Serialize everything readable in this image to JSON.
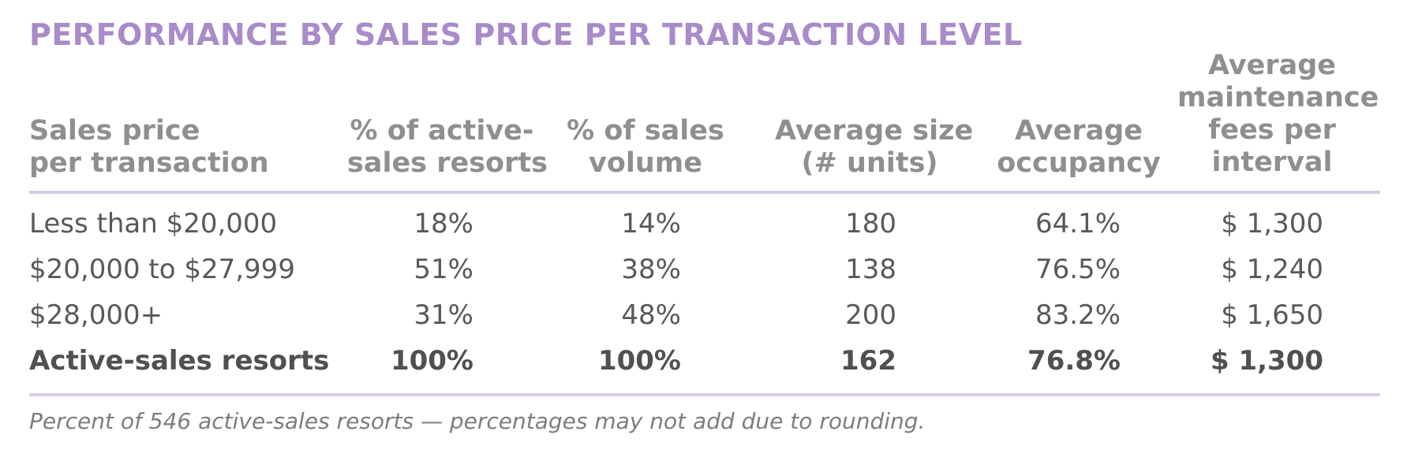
{
  "title": "PERFORMANCE BY SALES PRICE PER TRANSACTION LEVEL",
  "headers": {
    "col0": [
      "Sales price",
      "per transaction"
    ],
    "col1": [
      "% of active-",
      "sales resorts"
    ],
    "col2": [
      "% of sales",
      "volume"
    ],
    "col3": [
      "Average size",
      "(# units)"
    ],
    "col4": [
      "Average",
      "occupancy"
    ],
    "col5": [
      "Average",
      "maintenance",
      "fees per",
      "interval"
    ]
  },
  "rows": [
    {
      "label": "Less than $20,000",
      "pct_active": "18%",
      "pct_sales": "14%",
      "avg_size": "180",
      "avg_occupancy": "64.1%",
      "avg_fees": "$ 1,300"
    },
    {
      "label": "$20,000 to $27,999",
      "pct_active": "51%",
      "pct_sales": "38%",
      "avg_size": "138",
      "avg_occupancy": "76.5%",
      "avg_fees": "$ 1,240"
    },
    {
      "label": "$28,000+",
      "pct_active": "31%",
      "pct_sales": "48%",
      "avg_size": "200",
      "avg_occupancy": "83.2%",
      "avg_fees": "$ 1,650"
    }
  ],
  "total": {
    "label": "Active-sales resorts",
    "pct_active": "100%",
    "pct_sales": "100%",
    "avg_size": "162",
    "avg_occupancy": "76.8%",
    "avg_fees": "$ 1,300"
  },
  "note": "Percent of 546 active-sales resorts — percentages may not add due to rounding.",
  "colors": {
    "title": "#a98bc9",
    "header": "#8f8f8f",
    "rule": "#d7cde5",
    "body": "#595959"
  }
}
